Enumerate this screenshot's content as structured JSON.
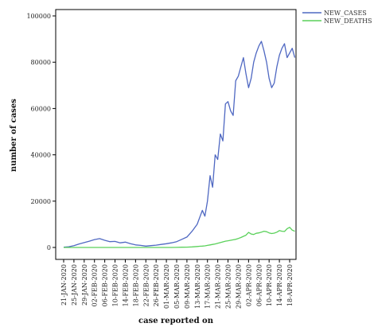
{
  "chart_data": {
    "type": "line",
    "xlabel": "case reported on",
    "ylabel": "number of cases",
    "ylim": [
      0,
      100000
    ],
    "yticks": [
      "0",
      "20000",
      "40000",
      "60000",
      "80000",
      "100000"
    ],
    "x_tick_labels": [
      "21-JAN-2020",
      "25-JAN-2020",
      "29-JAN-2020",
      "02-FEB-2020",
      "06-FEB-2020",
      "10-FEB-2020",
      "14-FEB-2020",
      "18-FEB-2020",
      "22-FEB-2020",
      "26-FEB-2020",
      "01-MAR-2020",
      "05-MAR-2020",
      "09-MAR-2020",
      "13-MAR-2020",
      "17-MAR-2020",
      "21-MAR-2020",
      "25-MAR-2020",
      "29-MAR-2020",
      "02-APR-2020",
      "06-APR-2020",
      "10-APR-2020",
      "14-APR-2020",
      "18-APR-2020"
    ],
    "x": [
      "21-JAN-2020",
      "23-JAN-2020",
      "25-JAN-2020",
      "27-JAN-2020",
      "29-JAN-2020",
      "31-JAN-2020",
      "02-FEB-2020",
      "04-FEB-2020",
      "06-FEB-2020",
      "08-FEB-2020",
      "10-FEB-2020",
      "12-FEB-2020",
      "14-FEB-2020",
      "16-FEB-2020",
      "18-FEB-2020",
      "20-FEB-2020",
      "22-FEB-2020",
      "24-FEB-2020",
      "26-FEB-2020",
      "28-FEB-2020",
      "01-MAR-2020",
      "03-MAR-2020",
      "05-MAR-2020",
      "07-MAR-2020",
      "09-MAR-2020",
      "11-MAR-2020",
      "13-MAR-2020",
      "14-MAR-2020",
      "15-MAR-2020",
      "16-MAR-2020",
      "17-MAR-2020",
      "18-MAR-2020",
      "19-MAR-2020",
      "20-MAR-2020",
      "21-MAR-2020",
      "22-MAR-2020",
      "23-MAR-2020",
      "24-MAR-2020",
      "25-MAR-2020",
      "26-MAR-2020",
      "27-MAR-2020",
      "28-MAR-2020",
      "29-MAR-2020",
      "30-MAR-2020",
      "31-MAR-2020",
      "01-APR-2020",
      "02-APR-2020",
      "03-APR-2020",
      "04-APR-2020",
      "05-APR-2020",
      "06-APR-2020",
      "07-APR-2020",
      "08-APR-2020",
      "09-APR-2020",
      "10-APR-2020",
      "11-APR-2020",
      "12-APR-2020",
      "13-APR-2020",
      "14-APR-2020",
      "15-APR-2020",
      "16-APR-2020",
      "17-APR-2020",
      "18-APR-2020",
      "19-APR-2020",
      "20-APR-2020"
    ],
    "series": [
      {
        "name": "NEW_CASES",
        "color": "#4f68c2",
        "values": [
          100,
          300,
          800,
          1500,
          2100,
          2700,
          3400,
          3800,
          3100,
          2500,
          2600,
          2000,
          2300,
          1600,
          1100,
          900,
          600,
          800,
          1000,
          1300,
          1600,
          2000,
          2500,
          3500,
          4500,
          7000,
          10000,
          13000,
          16000,
          13500,
          20000,
          31000,
          26000,
          40000,
          38000,
          49000,
          46000,
          62000,
          63000,
          59000,
          57000,
          72000,
          74000,
          78000,
          82000,
          75000,
          69000,
          73000,
          80000,
          84000,
          87000,
          89000,
          85000,
          80000,
          73000,
          69000,
          71000,
          78000,
          83000,
          86000,
          88000,
          82000,
          84000,
          86000,
          82000
        ]
      },
      {
        "name": "NEW_DEATHS",
        "color": "#5ad15a",
        "values": [
          0,
          0,
          0,
          0,
          0,
          0,
          0,
          0,
          0,
          0,
          0,
          0,
          0,
          0,
          0,
          0,
          0,
          0,
          0,
          0,
          0,
          0,
          50,
          100,
          150,
          250,
          400,
          500,
          600,
          700,
          900,
          1100,
          1300,
          1500,
          1800,
          2100,
          2400,
          2700,
          2900,
          3100,
          3300,
          3500,
          3900,
          4300,
          4800,
          5300,
          6500,
          5800,
          5600,
          6100,
          6300,
          6600,
          7000,
          6800,
          6300,
          6000,
          6200,
          6600,
          7300,
          7000,
          6900,
          8100,
          8700,
          7500,
          7000
        ]
      }
    ],
    "legend": {
      "position": "top-right"
    },
    "grid": false
  }
}
